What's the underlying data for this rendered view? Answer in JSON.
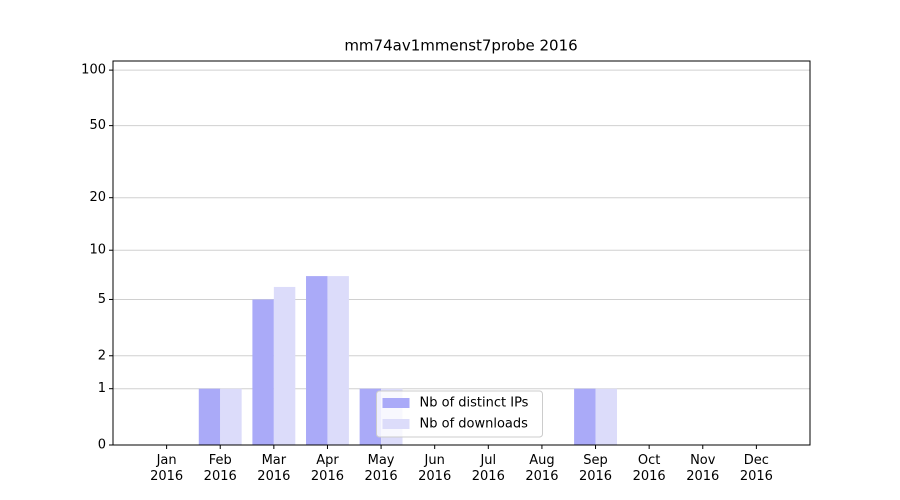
{
  "chart_data": {
    "type": "bar",
    "title": "mm74av1mmenst7probe 2016",
    "categories": [
      "Jan\n2016",
      "Feb\n2016",
      "Mar\n2016",
      "Apr\n2016",
      "May\n2016",
      "Jun\n2016",
      "Jul\n2016",
      "Aug\n2016",
      "Sep\n2016",
      "Oct\n2016",
      "Nov\n2016",
      "Dec\n2016"
    ],
    "series": [
      {
        "name": "Nb of distinct IPs",
        "color": "#aaaaf8",
        "values": [
          0,
          1,
          5,
          7,
          1,
          0,
          0,
          0,
          1,
          0,
          0,
          0
        ]
      },
      {
        "name": "Nb of downloads",
        "color": "#dcdcfa",
        "values": [
          0,
          1,
          6,
          7,
          1,
          0,
          0,
          0,
          1,
          0,
          0,
          0
        ]
      }
    ],
    "yscale": "log1p",
    "ylim": [
      0,
      112
    ],
    "yticks": [
      0,
      1,
      2,
      5,
      10,
      20,
      50,
      100
    ],
    "grid": true,
    "legend": "lower center"
  }
}
